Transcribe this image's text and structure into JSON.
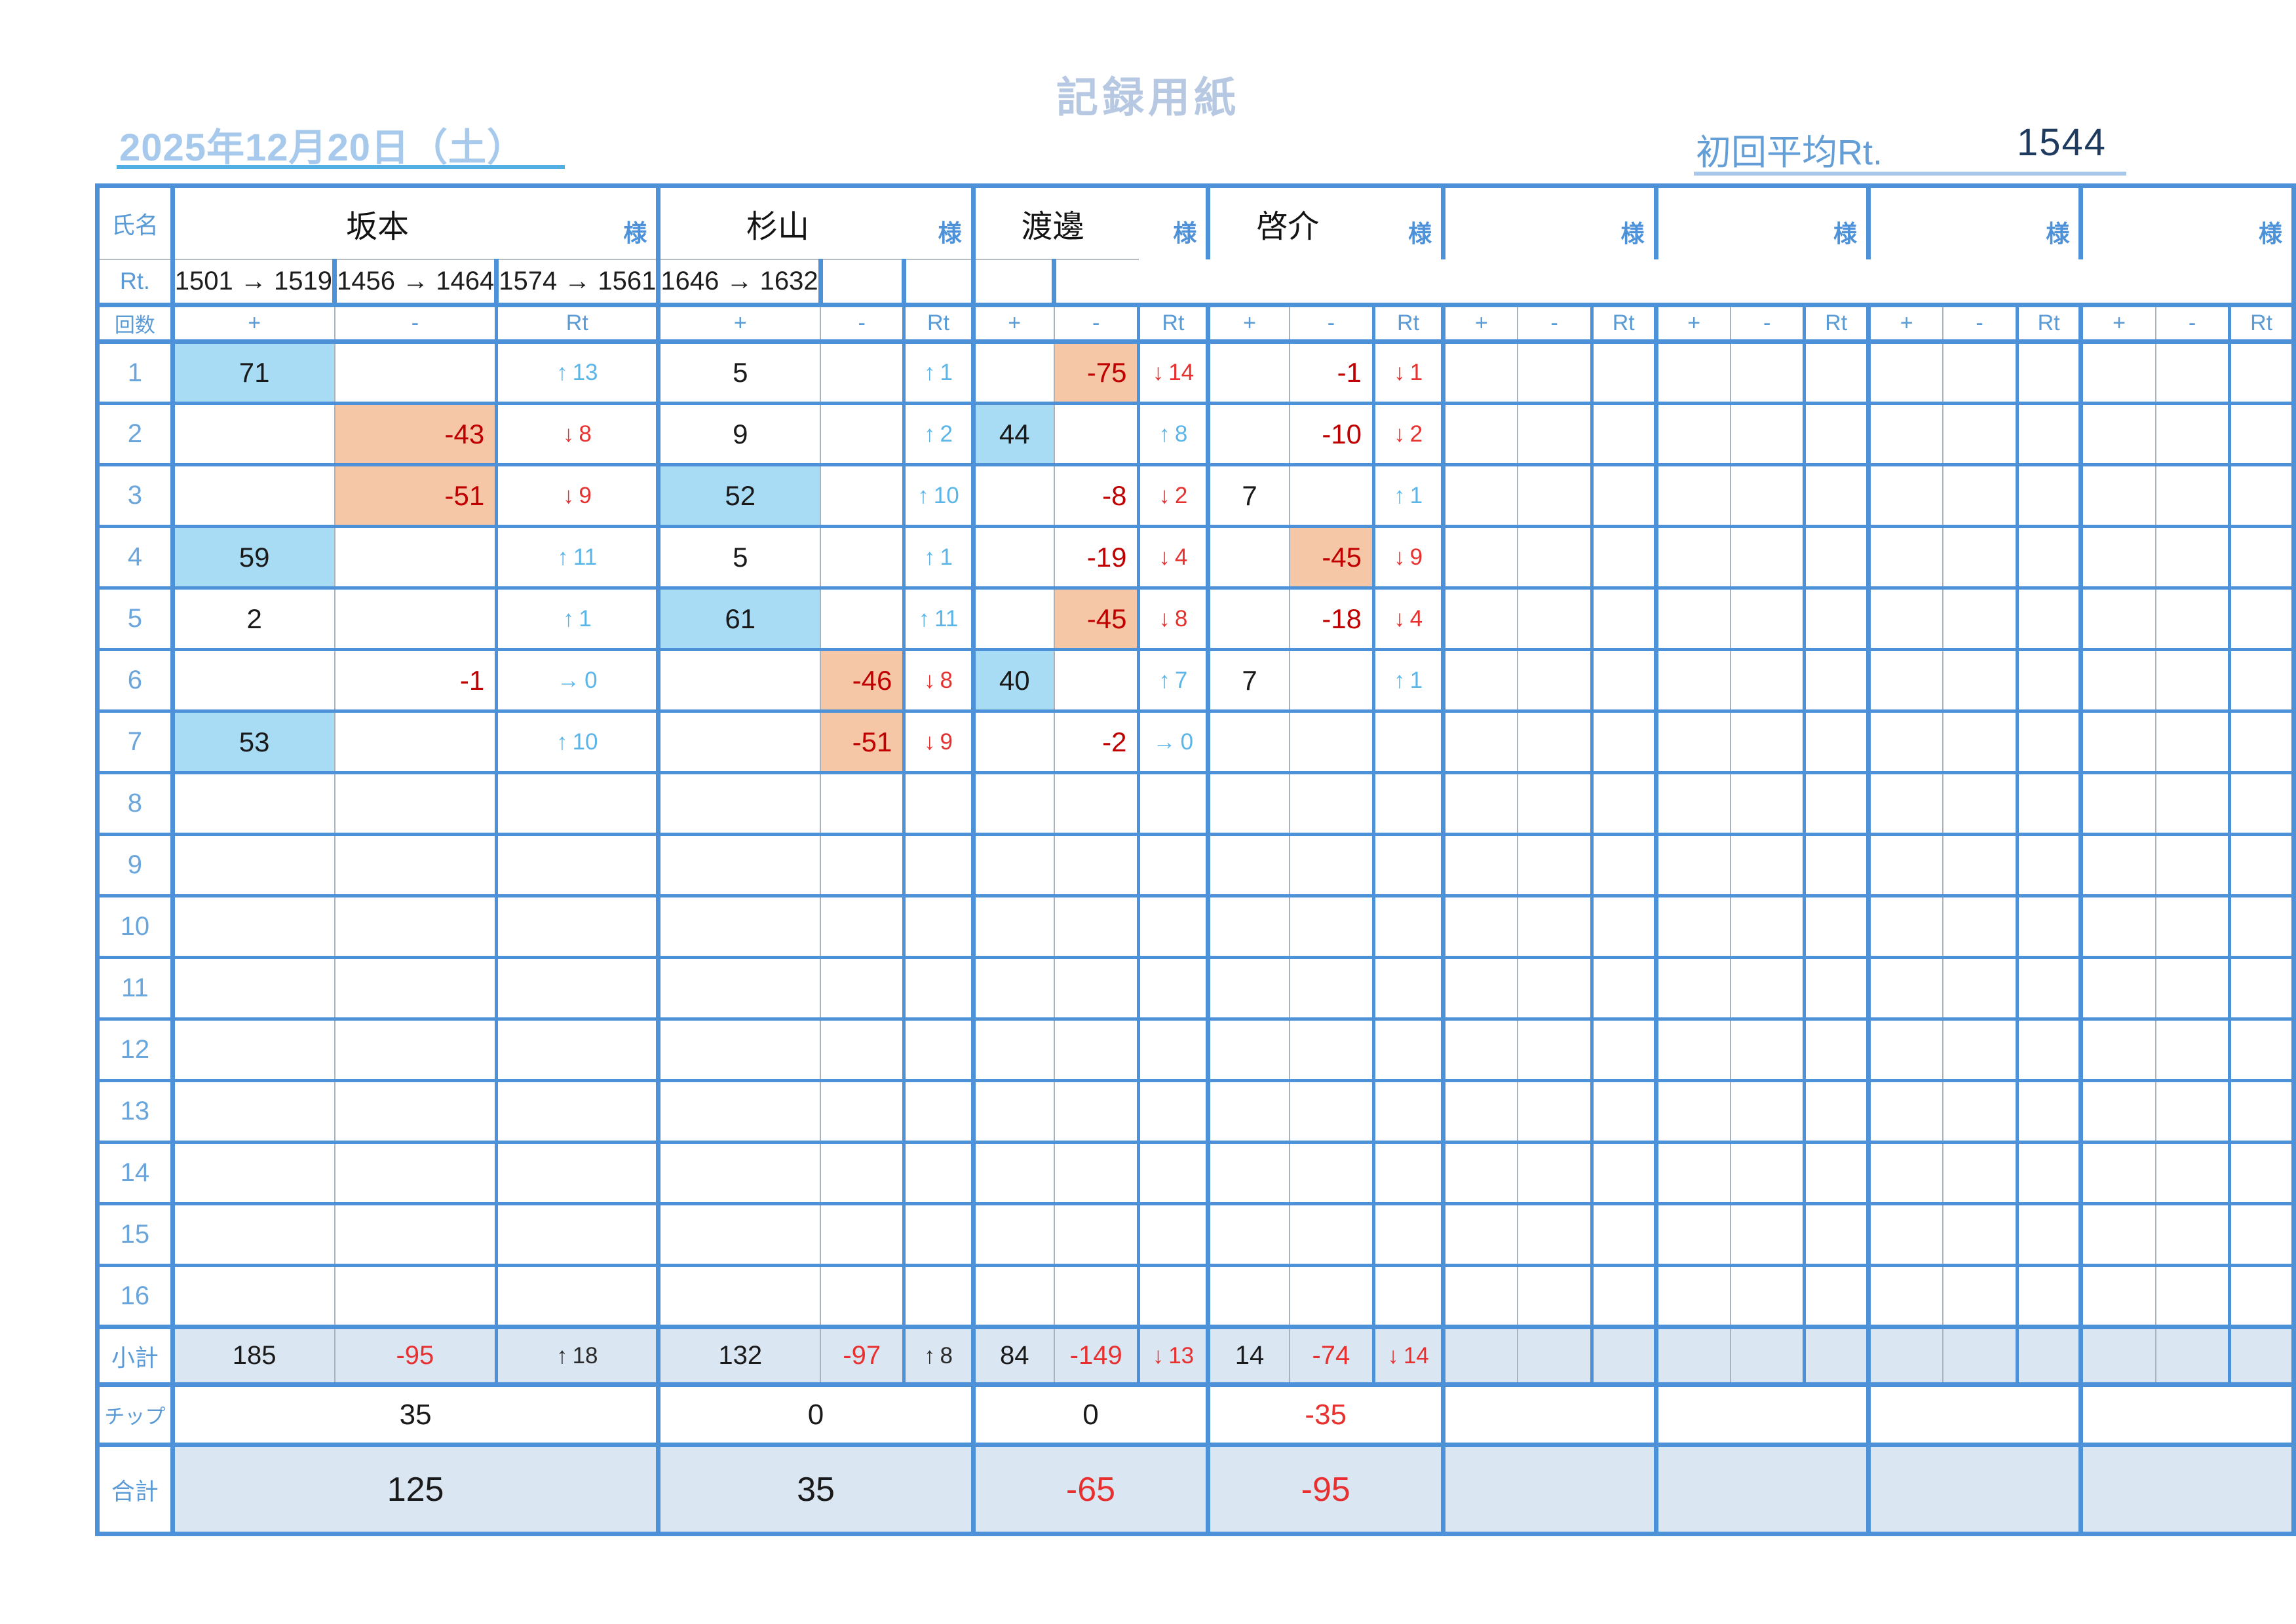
{
  "page": {
    "title": "記録用紙",
    "date": "2025年12月20日（土）",
    "avg_label": "初回平均Rt.",
    "avg_value": "1544"
  },
  "table": {
    "corner_labels": {
      "name": "氏名",
      "rating": "Rt.",
      "round": "回数",
      "subtotal": "小計",
      "chips": "チップ",
      "total": "合計"
    },
    "sama_suffix": "様",
    "col_headers": {
      "plus": "+",
      "minus": "-",
      "rt": "Rt"
    },
    "round_count": 16,
    "players": [
      {
        "name": "坂本",
        "rt_change": "1501 → 1519",
        "rounds": {
          "1": {
            "plus": 71,
            "highlight": true,
            "arrow": "↑",
            "rt": 13
          },
          "2": {
            "minus": -43,
            "highlight": true,
            "arrow": "↓",
            "rt": 8
          },
          "3": {
            "minus": -51,
            "highlight": true,
            "arrow": "↓",
            "rt": 9
          },
          "4": {
            "plus": 59,
            "highlight": true,
            "arrow": "↑",
            "rt": 11
          },
          "5": {
            "plus": 2,
            "highlight": false,
            "arrow": "↑",
            "rt": 1
          },
          "6": {
            "minus": -1,
            "highlight": false,
            "arrow": "→",
            "rt": 0
          },
          "7": {
            "plus": 53,
            "highlight": true,
            "arrow": "↑",
            "rt": 10
          }
        },
        "subtotal": {
          "plus": 185,
          "minus": -95,
          "arrow": "↑",
          "rt": 18
        },
        "chips": 35,
        "total": 125
      },
      {
        "name": "杉山",
        "rt_change": "1456 → 1464",
        "rounds": {
          "1": {
            "plus": 5,
            "highlight": false,
            "arrow": "↑",
            "rt": 1
          },
          "2": {
            "plus": 9,
            "highlight": false,
            "arrow": "↑",
            "rt": 2
          },
          "3": {
            "plus": 52,
            "highlight": true,
            "arrow": "↑",
            "rt": 10
          },
          "4": {
            "plus": 5,
            "highlight": false,
            "arrow": "↑",
            "rt": 1
          },
          "5": {
            "plus": 61,
            "highlight": true,
            "arrow": "↑",
            "rt": 11
          },
          "6": {
            "minus": -46,
            "highlight": true,
            "arrow": "↓",
            "rt": 8
          },
          "7": {
            "minus": -51,
            "highlight": true,
            "arrow": "↓",
            "rt": 9
          }
        },
        "subtotal": {
          "plus": 132,
          "minus": -97,
          "arrow": "↑",
          "rt": 8
        },
        "chips": 0,
        "total": 35
      },
      {
        "name": "渡邊",
        "rt_change": "1574 → 1561",
        "rounds": {
          "1": {
            "minus": -75,
            "highlight": true,
            "arrow": "↓",
            "rt": 14
          },
          "2": {
            "plus": 44,
            "highlight": true,
            "arrow": "↑",
            "rt": 8
          },
          "3": {
            "minus": -8,
            "highlight": false,
            "arrow": "↓",
            "rt": 2
          },
          "4": {
            "minus": -19,
            "highlight": false,
            "arrow": "↓",
            "rt": 4
          },
          "5": {
            "minus": -45,
            "highlight": true,
            "arrow": "↓",
            "rt": 8
          },
          "6": {
            "plus": 40,
            "highlight": true,
            "arrow": "↑",
            "rt": 7
          },
          "7": {
            "minus": -2,
            "highlight": false,
            "arrow": "→",
            "rt": 0
          }
        },
        "subtotal": {
          "plus": 84,
          "minus": -149,
          "arrow": "↓",
          "rt": 13
        },
        "chips": 0,
        "total": -65
      },
      {
        "name": "啓介",
        "rt_change": "1646 → 1632",
        "rounds": {
          "1": {
            "minus": -1,
            "highlight": false,
            "arrow": "↓",
            "rt": 1
          },
          "2": {
            "minus": -10,
            "highlight": false,
            "arrow": "↓",
            "rt": 2
          },
          "3": {
            "plus": 7,
            "highlight": false,
            "arrow": "↑",
            "rt": 1
          },
          "4": {
            "minus": -45,
            "highlight": true,
            "arrow": "↓",
            "rt": 9
          },
          "5": {
            "minus": -18,
            "highlight": false,
            "arrow": "↓",
            "rt": 4
          },
          "6": {
            "plus": 7,
            "highlight": false,
            "arrow": "↑",
            "rt": 1
          }
        },
        "subtotal": {
          "plus": 14,
          "minus": -74,
          "arrow": "↓",
          "rt": 14
        },
        "chips": -35,
        "total": -95
      },
      {
        "name": "",
        "rt_change": "",
        "rounds": {},
        "subtotal": {},
        "chips": null,
        "total": null
      },
      {
        "name": "",
        "rt_change": "",
        "rounds": {},
        "subtotal": {},
        "chips": null,
        "total": null
      },
      {
        "name": "",
        "rt_change": "",
        "rounds": {},
        "subtotal": {},
        "chips": null,
        "total": null
      },
      {
        "name": "",
        "rt_change": "",
        "rounds": {},
        "subtotal": {},
        "chips": null,
        "total": null
      }
    ]
  }
}
